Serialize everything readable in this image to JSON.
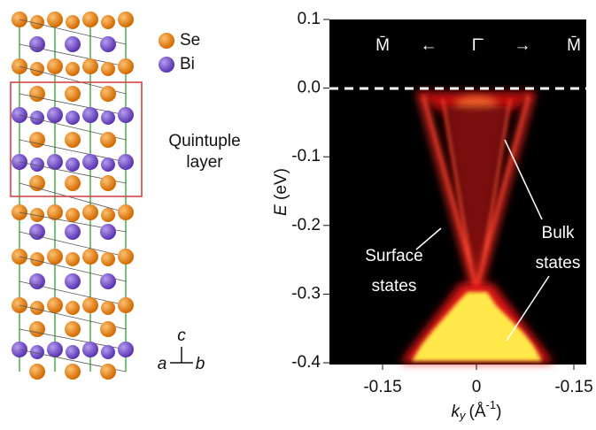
{
  "structure": {
    "legend": [
      "Se",
      "Bi"
    ],
    "box_label": [
      "Quintuple",
      "layer"
    ],
    "axes": {
      "a": "a",
      "b": "b",
      "c": "c"
    }
  },
  "spectrum": {
    "ylim": [
      -0.4,
      0.1
    ],
    "yticks": [
      0.1,
      {
        "value": 0,
        "label": "0.0"
      },
      -0.1,
      -0.2,
      -0.3,
      -0.4
    ],
    "xtick_labels": [
      "-0.15",
      "0",
      "-0.15"
    ],
    "ylabel": {
      "symbol": "E",
      "unit": "(eV)"
    },
    "xlabel": {
      "symbol": "k",
      "sub": "y",
      "unit_open": "(Å",
      "sup": "-1",
      "unit_close": ")"
    },
    "direction": [
      "M̄",
      "←",
      "Γ̄",
      "→",
      "M̄"
    ],
    "annotations": {
      "surface": [
        "Surface",
        "states"
      ],
      "bulk": [
        "Bulk",
        "states"
      ]
    }
  }
}
